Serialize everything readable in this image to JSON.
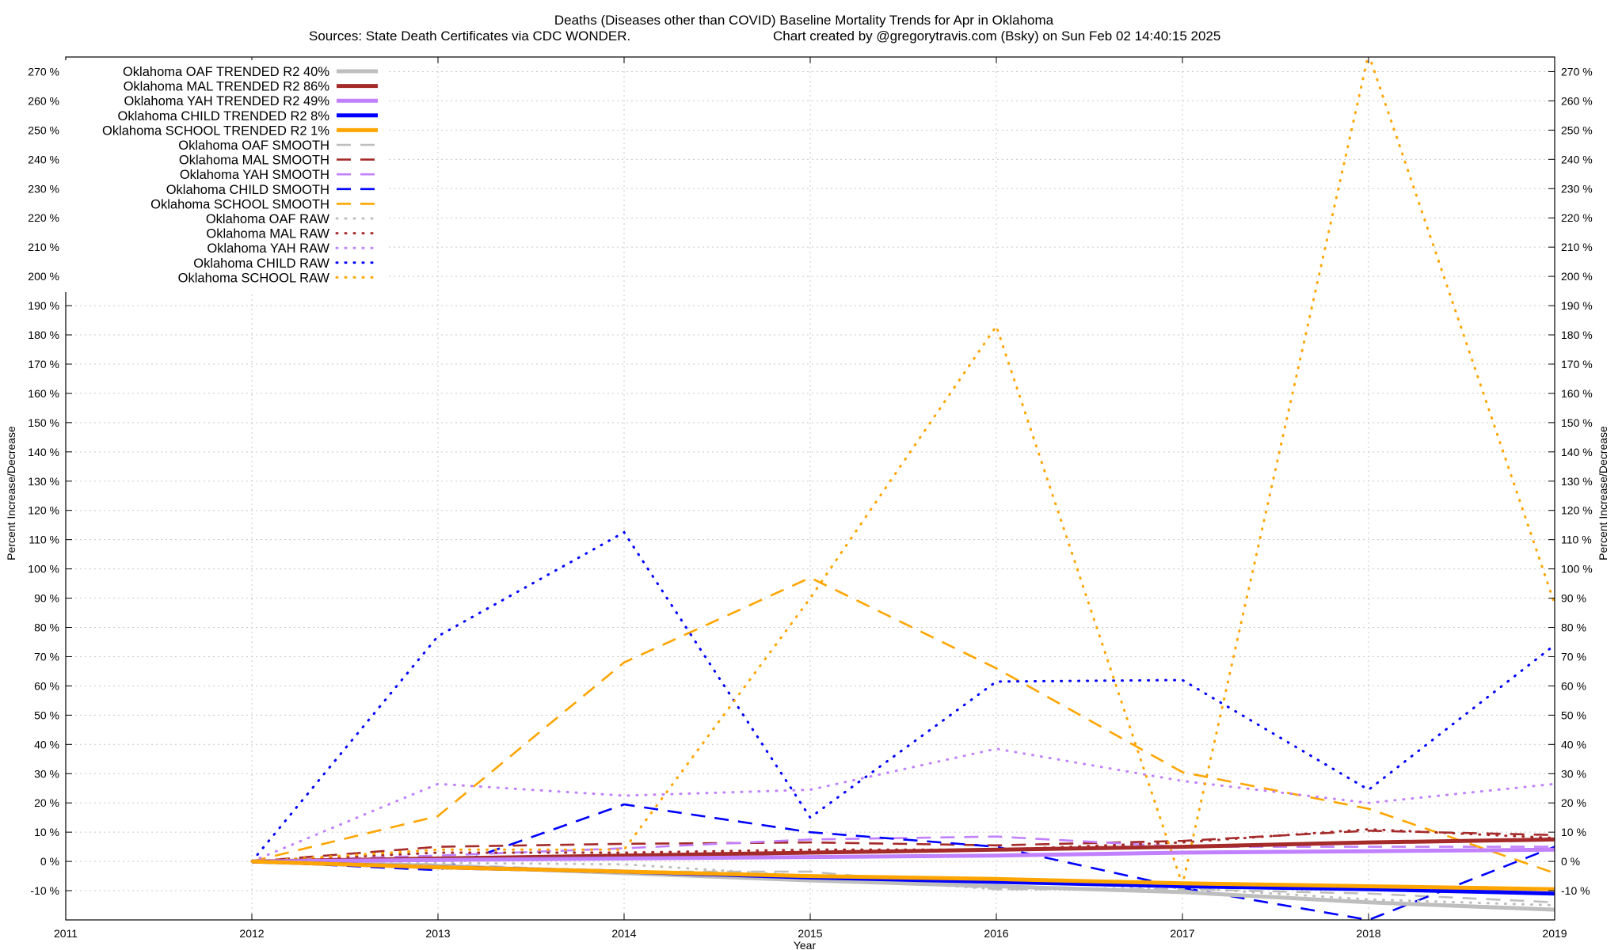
{
  "chart_data": {
    "type": "line",
    "title_line1": "Deaths (Diseases other than COVID)  Baseline Mortality Trends for Apr in Oklahoma",
    "title_line2_left": "Sources: State Death Certificates via CDC WONDER.",
    "title_line2_right": "Chart created by @gregorytravis.com (Bsky) on Sun Feb 02 14:40:15 2025",
    "xlabel": "Year",
    "ylabel": "Percent Increase/Decrease",
    "ylabel_right": "Percent Increase/Decrease",
    "xlim": [
      2011,
      2019
    ],
    "ylim": [
      -20,
      275
    ],
    "x_ticks": [
      "2011",
      "2012",
      "2013",
      "2014",
      "2015",
      "2016",
      "2017",
      "2018",
      "2019"
    ],
    "y_ticks": [
      -10,
      0,
      10,
      20,
      30,
      40,
      50,
      60,
      70,
      80,
      90,
      100,
      110,
      120,
      130,
      140,
      150,
      160,
      170,
      180,
      190,
      200,
      210,
      220,
      230,
      240,
      250,
      260,
      270
    ],
    "y_tick_suffix": " %",
    "grid": true,
    "legend_position": "top-left",
    "x": [
      2012,
      2013,
      2014,
      2015,
      2016,
      2017,
      2018,
      2019
    ],
    "series": [
      {
        "name": "Oklahoma OAF TRENDED R2  40%",
        "style": "solid",
        "color": "#bebebe",
        "values": [
          0,
          -1.5,
          -4,
          -6.5,
          -8.5,
          -10.5,
          -14,
          -16.5
        ]
      },
      {
        "name": "Oklahoma MAL TRENDED R2  86%",
        "style": "solid",
        "color": "#a52a2a",
        "values": [
          0,
          1,
          2,
          3,
          4,
          5,
          6.5,
          7.5
        ]
      },
      {
        "name": "Oklahoma YAH TRENDED R2  49%",
        "style": "solid",
        "color": "#c080ff",
        "values": [
          0,
          0.5,
          1,
          1.5,
          2,
          3,
          3.5,
          4
        ]
      },
      {
        "name": "Oklahoma CHILD TRENDED R2   8%",
        "style": "solid",
        "color": "#0000ff",
        "values": [
          0,
          -2,
          -3.5,
          -5.5,
          -7,
          -8.5,
          -9.5,
          -11
        ]
      },
      {
        "name": "Oklahoma SCHOOL TRENDED R2   1%",
        "style": "solid",
        "color": "#ffa500",
        "values": [
          0,
          -2,
          -3.5,
          -5,
          -6,
          -7.5,
          -8.5,
          -9.5
        ]
      },
      {
        "name": "Oklahoma OAF SMOOTH",
        "style": "dashed",
        "color": "#bebebe",
        "values": [
          0,
          -1,
          -3.5,
          -3.5,
          -9.5,
          -9.5,
          -11,
          -14
        ]
      },
      {
        "name": "Oklahoma MAL SMOOTH",
        "style": "dashed",
        "color": "#a52a2a",
        "values": [
          0,
          5,
          6,
          6.5,
          5.5,
          7,
          10.5,
          9
        ]
      },
      {
        "name": "Oklahoma YAH SMOOTH",
        "style": "dashed",
        "color": "#c080ff",
        "values": [
          0,
          2,
          4.5,
          7.5,
          8.5,
          5,
          5,
          5
        ]
      },
      {
        "name": "Oklahoma CHILD SMOOTH",
        "style": "dashed",
        "color": "#0000ff",
        "values": [
          0,
          -3,
          19.5,
          10,
          5,
          -9,
          -20,
          5
        ]
      },
      {
        "name": "Oklahoma SCHOOL SMOOTH",
        "style": "dashed",
        "color": "#ffa500",
        "values": [
          0,
          15.5,
          68,
          97,
          66,
          30.5,
          18,
          -4
        ]
      },
      {
        "name": "Oklahoma OAF RAW",
        "style": "dotted",
        "color": "#bebebe",
        "values": [
          0,
          -0.5,
          -1,
          -5,
          -9.5,
          -9,
          -13,
          -15
        ]
      },
      {
        "name": "Oklahoma MAL RAW",
        "style": "dotted",
        "color": "#a52a2a",
        "values": [
          0,
          3,
          3,
          4,
          4,
          6.5,
          11,
          8
        ]
      },
      {
        "name": "Oklahoma YAH RAW",
        "style": "dotted",
        "color": "#c080ff",
        "values": [
          0,
          26.5,
          22.5,
          24.5,
          38.5,
          27.5,
          20,
          26.5
        ]
      },
      {
        "name": "Oklahoma CHILD RAW",
        "style": "dotted",
        "color": "#0000ff",
        "values": [
          0,
          77,
          112.5,
          15,
          61.5,
          62,
          24.5,
          74
        ]
      },
      {
        "name": "Oklahoma SCHOOL RAW",
        "style": "dotted",
        "color": "#ffa500",
        "values": [
          0,
          4,
          4,
          90,
          183,
          -8,
          276,
          88
        ]
      }
    ]
  }
}
